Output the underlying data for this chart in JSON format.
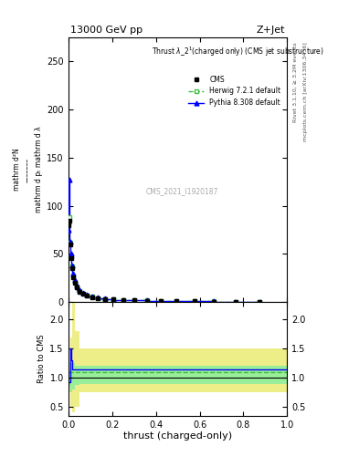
{
  "title_top": "13000 GeV pp",
  "title_right": "Z+Jet",
  "watermark": "CMS_2021_I1920187",
  "right_label_top": "Rivet 3.1.10, ≥ 3.2M events",
  "right_label_bottom": "mcplots.cern.ch [arXiv:1306.3436]",
  "xlabel": "thrust (charged-only)",
  "ylabel_main_lines": [
    "mathrm d²N",
    "1",
    "mathrm d p_T mathrm d lambda"
  ],
  "ylabel_ratio": "Ratio to CMS",
  "ylim_main": [
    0,
    275
  ],
  "ylim_ratio": [
    0.35,
    2.3
  ],
  "yticks_main": [
    0,
    50,
    100,
    150,
    200,
    250
  ],
  "yticks_ratio": [
    0.5,
    1.0,
    1.5,
    2.0
  ],
  "xlim": [
    0,
    1
  ],
  "cms_x": [
    0.002,
    0.005,
    0.008,
    0.012,
    0.017,
    0.023,
    0.03,
    0.04,
    0.052,
    0.067,
    0.085,
    0.108,
    0.135,
    0.168,
    0.207,
    0.252,
    0.303,
    0.36,
    0.424,
    0.495,
    0.575,
    0.665,
    0.765,
    0.875
  ],
  "cms_y": [
    80,
    85,
    60,
    46,
    35,
    26,
    20,
    15,
    11,
    8.5,
    6.5,
    5.0,
    4.0,
    3.2,
    2.7,
    2.2,
    1.9,
    1.6,
    1.4,
    1.1,
    0.9,
    0.7,
    0.5,
    0.3
  ],
  "herwig_x": [
    0.002,
    0.005,
    0.008,
    0.012,
    0.017,
    0.023,
    0.03,
    0.04,
    0.052,
    0.067,
    0.085,
    0.108,
    0.135,
    0.168,
    0.207,
    0.252,
    0.303,
    0.36,
    0.424,
    0.495,
    0.575,
    0.665,
    0.765,
    0.875
  ],
  "herwig_y": [
    82,
    88,
    62,
    48,
    37,
    28,
    21,
    16,
    12,
    9,
    7,
    5.5,
    4.3,
    3.5,
    2.9,
    2.4,
    2.0,
    1.7,
    1.5,
    1.2,
    1.0,
    0.8,
    0.55,
    0.32
  ],
  "pythia_x": [
    0.002,
    0.005,
    0.008,
    0.012,
    0.017,
    0.023,
    0.03,
    0.04,
    0.052,
    0.067,
    0.085,
    0.108,
    0.135,
    0.168,
    0.207,
    0.252,
    0.303,
    0.36,
    0.424,
    0.495,
    0.575,
    0.665,
    0.765,
    0.875
  ],
  "pythia_y": [
    75,
    127,
    63,
    50,
    38,
    30,
    23,
    17,
    13,
    10,
    7.5,
    6.0,
    4.8,
    3.8,
    3.1,
    2.6,
    2.1,
    1.8,
    1.55,
    1.25,
    1.0,
    0.8,
    0.6,
    0.35
  ],
  "herwig_ratio_x": [
    0.0,
    0.025,
    0.05,
    0.075,
    0.1,
    0.125,
    0.15,
    0.175,
    0.2,
    0.225,
    0.25,
    0.3,
    0.35,
    0.4,
    0.45,
    0.5,
    0.6,
    0.7,
    0.8,
    0.9,
    1.0
  ],
  "herwig_ratio_y": [
    1.1,
    1.1,
    1.1,
    1.1,
    1.1,
    1.1,
    1.1,
    1.1,
    1.1,
    1.1,
    1.1,
    1.1,
    1.1,
    1.1,
    1.1,
    1.1,
    1.1,
    1.1,
    1.1,
    1.1,
    1.1
  ],
  "pythia_ratio_x": [
    0.0,
    0.01,
    0.015,
    0.02,
    0.025,
    0.05,
    0.075,
    0.1,
    0.15,
    0.2,
    0.3,
    0.4,
    0.5,
    0.6,
    0.7,
    0.8,
    0.9,
    1.0
  ],
  "pythia_ratio_y": [
    0.93,
    1.5,
    1.3,
    1.15,
    1.15,
    1.15,
    1.15,
    1.15,
    1.15,
    1.15,
    1.15,
    1.15,
    1.15,
    1.15,
    1.15,
    1.15,
    1.15,
    1.15
  ],
  "yellow_band_x": [
    0.0,
    0.01,
    0.02,
    0.03,
    0.05,
    0.1,
    0.15,
    1.0
  ],
  "yellow_band_lo": [
    0.75,
    0.5,
    0.4,
    0.5,
    0.75,
    0.75,
    0.75,
    0.75
  ],
  "yellow_band_hi": [
    1.25,
    1.7,
    2.3,
    1.8,
    1.5,
    1.5,
    1.5,
    1.5
  ],
  "green_band_x": [
    0.0,
    0.01,
    0.02,
    0.03,
    0.05,
    0.1,
    0.15,
    1.0
  ],
  "green_band_lo": [
    0.85,
    0.75,
    0.8,
    0.88,
    0.9,
    0.9,
    0.9,
    0.9
  ],
  "green_band_hi": [
    1.15,
    1.25,
    1.25,
    1.2,
    1.2,
    1.2,
    1.2,
    1.2
  ],
  "cms_color": "black",
  "herwig_color": "#44bb44",
  "pythia_color": "blue",
  "herwig_band_color": "#99ee99",
  "yellow_band_color": "#eeee88",
  "background_color": "white",
  "fig_width": 3.93,
  "fig_height": 5.12
}
